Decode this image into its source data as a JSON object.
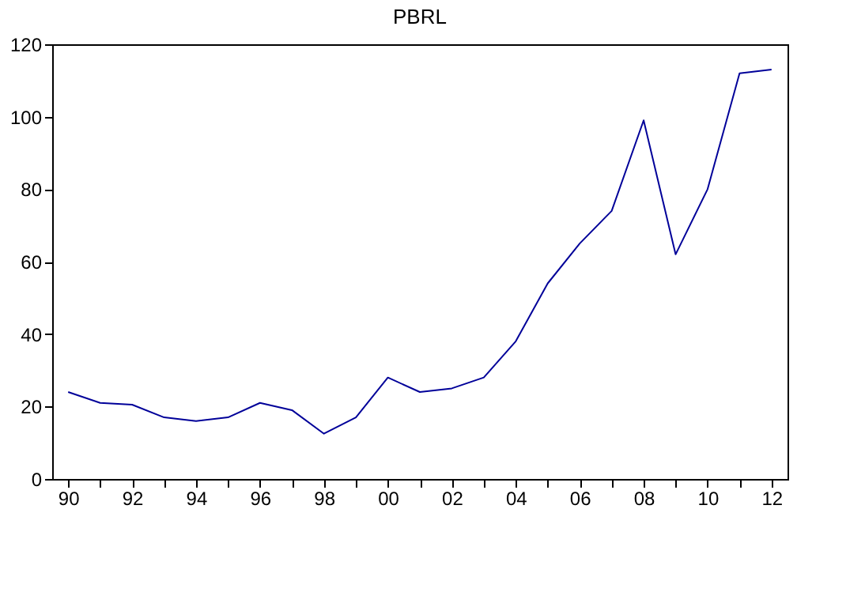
{
  "chart_data": {
    "type": "line",
    "title": "PBRL",
    "categories": [
      "90",
      null,
      "92",
      null,
      "94",
      null,
      "96",
      null,
      "98",
      null,
      "00",
      null,
      "02",
      null,
      "04",
      null,
      "06",
      null,
      "08",
      null,
      "10",
      null,
      "12"
    ],
    "values": [
      24,
      21,
      20.5,
      17,
      16,
      17,
      21,
      19,
      12.5,
      17,
      28,
      24,
      25,
      28,
      38,
      54,
      65,
      74,
      99,
      62,
      80,
      112,
      113
    ],
    "color": "#000099",
    "ylim": [
      0,
      120
    ],
    "yticks": [
      0,
      20,
      40,
      60,
      80,
      100,
      120
    ],
    "grid": false
  }
}
